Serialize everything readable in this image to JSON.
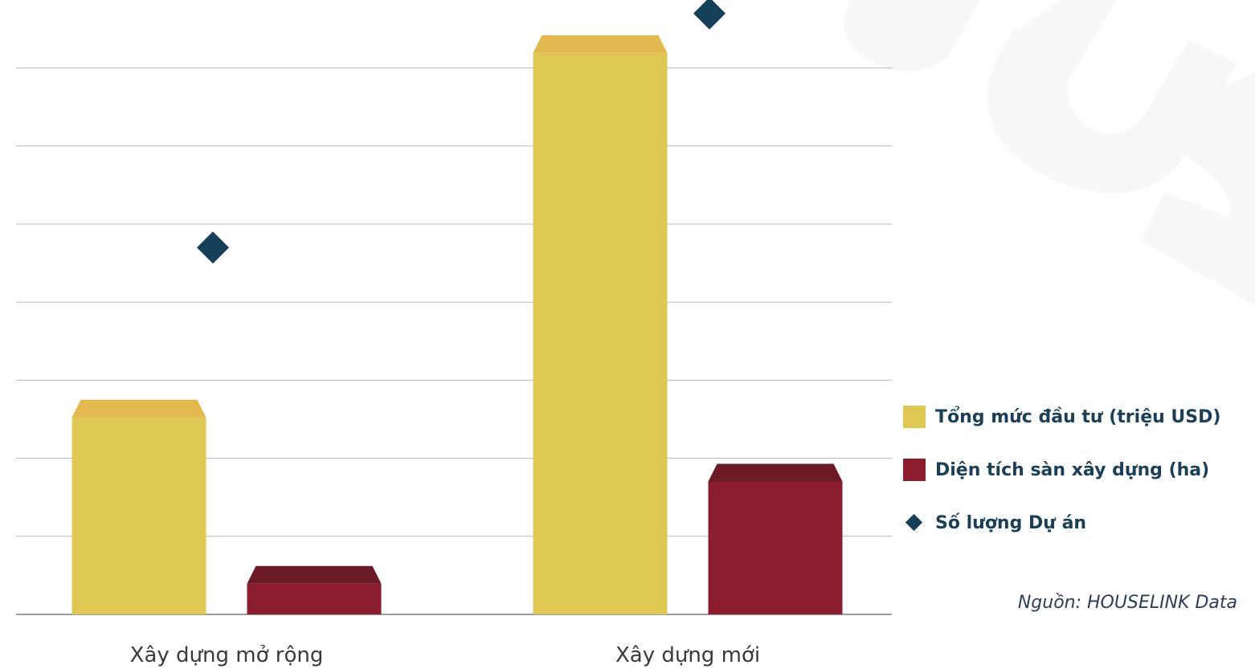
{
  "chart_data": {
    "type": "bar",
    "categories": [
      "Xây dựng mở rộng",
      "Xây dựng mới"
    ],
    "series": [
      {
        "name": "Tổng mức đầu tư (triệu USD)",
        "kind": "bar",
        "color": "#dec853",
        "values": [
          2.75,
          7.42
        ]
      },
      {
        "name": "Diện tích sàn xây dựng (ha)",
        "kind": "bar",
        "color": "#8c1d2e",
        "values": [
          0.62,
          1.93
        ]
      },
      {
        "name": "Số lượng Dự án",
        "kind": "marker",
        "color": "#163f5a",
        "values": [
          4.7,
          7.7
        ]
      }
    ],
    "ylim": [
      0,
      7.8
    ],
    "grid": true,
    "legend_position": "right"
  },
  "legend": {
    "items": [
      {
        "label": "Tổng mức đầu tư (triệu USD)",
        "color": "#dec853"
      },
      {
        "label": "Diện tích sàn xây dựng (ha)",
        "color": "#8c1d2e"
      },
      {
        "label": "Số lượng Dự án",
        "color": "#163f5a"
      }
    ]
  },
  "source": "Nguồn:  HOUSELINK Data"
}
